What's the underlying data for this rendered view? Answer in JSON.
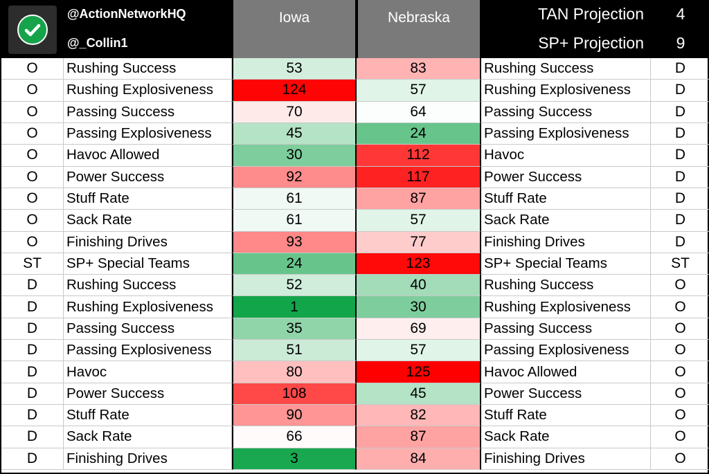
{
  "header": {
    "handle_1": "@ActionNetworkHQ",
    "handle_2": "@_Collin1",
    "team_1": "Iowa",
    "team_2": "Nebraska",
    "projections": [
      {
        "label": "TAN Projection",
        "value": "4"
      },
      {
        "label": "SP+ Projection",
        "value": "9"
      }
    ]
  },
  "colors": {
    "header_black": "#000000",
    "team_header_gray": "#7a7a7a",
    "logo_check_green": "#16a34a",
    "scale_best": "#12a54a",
    "scale_mid": "#ffffff",
    "scale_worst": "#ff0000"
  },
  "rows": [
    {
      "side_left": "O",
      "label_left": "Rushing Success",
      "iowa": 53,
      "nebraska": 83,
      "label_right": "Rushing Success",
      "side_right": "D"
    },
    {
      "side_left": "O",
      "label_left": "Rushing Explosiveness",
      "iowa": 124,
      "nebraska": 57,
      "label_right": "Rushing Explosiveness",
      "side_right": "D"
    },
    {
      "side_left": "O",
      "label_left": "Passing Success",
      "iowa": 70,
      "nebraska": 64,
      "label_right": "Passing Success",
      "side_right": "D"
    },
    {
      "side_left": "O",
      "label_left": "Passing Explosiveness",
      "iowa": 45,
      "nebraska": 24,
      "label_right": "Passing Explosiveness",
      "side_right": "D"
    },
    {
      "side_left": "O",
      "label_left": "Havoc Allowed",
      "iowa": 30,
      "nebraska": 112,
      "label_right": "Havoc",
      "side_right": "D"
    },
    {
      "side_left": "O",
      "label_left": "Power Success",
      "iowa": 92,
      "nebraska": 117,
      "label_right": "Power Success",
      "side_right": "D"
    },
    {
      "side_left": "O",
      "label_left": "Stuff Rate",
      "iowa": 61,
      "nebraska": 87,
      "label_right": "Stuff Rate",
      "side_right": "D"
    },
    {
      "side_left": "O",
      "label_left": "Sack Rate",
      "iowa": 61,
      "nebraska": 57,
      "label_right": "Sack Rate",
      "side_right": "D"
    },
    {
      "side_left": "O",
      "label_left": "Finishing Drives",
      "iowa": 93,
      "nebraska": 77,
      "label_right": "Finishing Drives",
      "side_right": "D"
    },
    {
      "side_left": "ST",
      "label_left": "SP+ Special Teams",
      "iowa": 24,
      "nebraska": 123,
      "label_right": "SP+ Special Teams",
      "side_right": "ST"
    },
    {
      "side_left": "D",
      "label_left": "Rushing Success",
      "iowa": 52,
      "nebraska": 40,
      "label_right": "Rushing Success",
      "side_right": "O"
    },
    {
      "side_left": "D",
      "label_left": "Rushing Explosiveness",
      "iowa": 1,
      "nebraska": 30,
      "label_right": "Rushing Explosiveness",
      "side_right": "O"
    },
    {
      "side_left": "D",
      "label_left": "Passing Success",
      "iowa": 35,
      "nebraska": 69,
      "label_right": "Passing Success",
      "side_right": "O"
    },
    {
      "side_left": "D",
      "label_left": "Passing Explosiveness",
      "iowa": 51,
      "nebraska": 57,
      "label_right": "Passing Explosiveness",
      "side_right": "O"
    },
    {
      "side_left": "D",
      "label_left": "Havoc",
      "iowa": 80,
      "nebraska": 125,
      "label_right": "Havoc Allowed",
      "side_right": "O"
    },
    {
      "side_left": "D",
      "label_left": "Power Success",
      "iowa": 108,
      "nebraska": 45,
      "label_right": "Power Success",
      "side_right": "O"
    },
    {
      "side_left": "D",
      "label_left": "Stuff Rate",
      "iowa": 90,
      "nebraska": 82,
      "label_right": "Stuff Rate",
      "side_right": "O"
    },
    {
      "side_left": "D",
      "label_left": "Sack Rate",
      "iowa": 66,
      "nebraska": 87,
      "label_right": "Sack Rate",
      "side_right": "O"
    },
    {
      "side_left": "D",
      "label_left": "Finishing Drives",
      "iowa": 3,
      "nebraska": 84,
      "label_right": "Finishing Drives",
      "side_right": "O"
    }
  ]
}
